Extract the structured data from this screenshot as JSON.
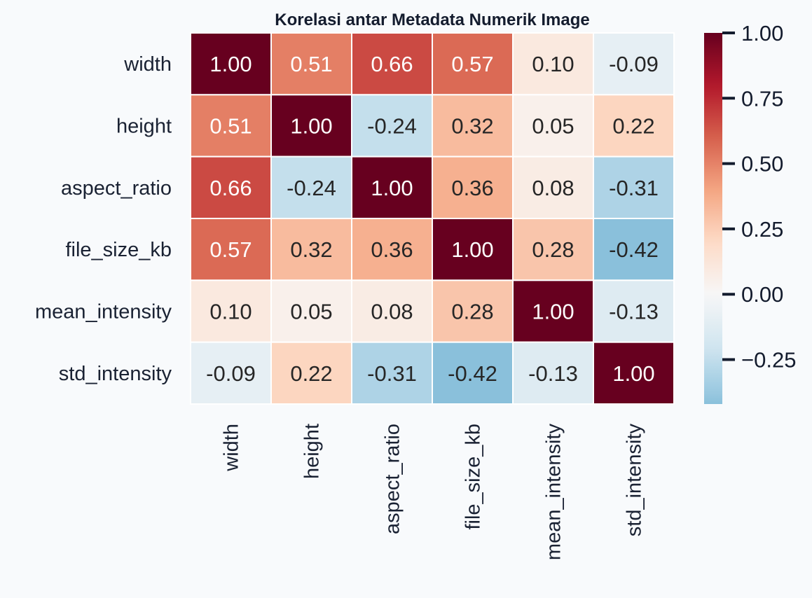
{
  "chart_data": {
    "type": "heatmap",
    "title": "Korelasi antar Metadata Numerik Image",
    "row_labels": [
      "width",
      "height",
      "aspect_ratio",
      "file_size_kb",
      "mean_intensity",
      "std_intensity"
    ],
    "col_labels": [
      "width",
      "height",
      "aspect_ratio",
      "file_size_kb",
      "mean_intensity",
      "std_intensity"
    ],
    "values": [
      [
        1.0,
        0.51,
        0.66,
        0.57,
        0.1,
        -0.09
      ],
      [
        0.51,
        1.0,
        -0.24,
        0.32,
        0.05,
        0.22
      ],
      [
        0.66,
        -0.24,
        1.0,
        0.36,
        0.08,
        -0.31
      ],
      [
        0.57,
        0.32,
        0.36,
        1.0,
        0.28,
        -0.42
      ],
      [
        0.1,
        0.05,
        0.08,
        0.28,
        1.0,
        -0.13
      ],
      [
        -0.09,
        0.22,
        -0.31,
        -0.42,
        -0.13,
        1.0
      ]
    ],
    "colormap": "RdBu_r",
    "center": 0,
    "vmin": -0.42,
    "vmax": 1.0,
    "annotation_format": "0.00",
    "colorbar": {
      "ticks": [
        1.0,
        0.75,
        0.5,
        0.25,
        0.0,
        -0.25
      ],
      "tick_labels": [
        "1.00",
        "0.75",
        "0.50",
        "0.25",
        "0.00",
        "−0.25"
      ]
    },
    "colors": {
      "background": "#f8fafc",
      "text": "#1a2233",
      "grid": "#ffffff"
    }
  }
}
